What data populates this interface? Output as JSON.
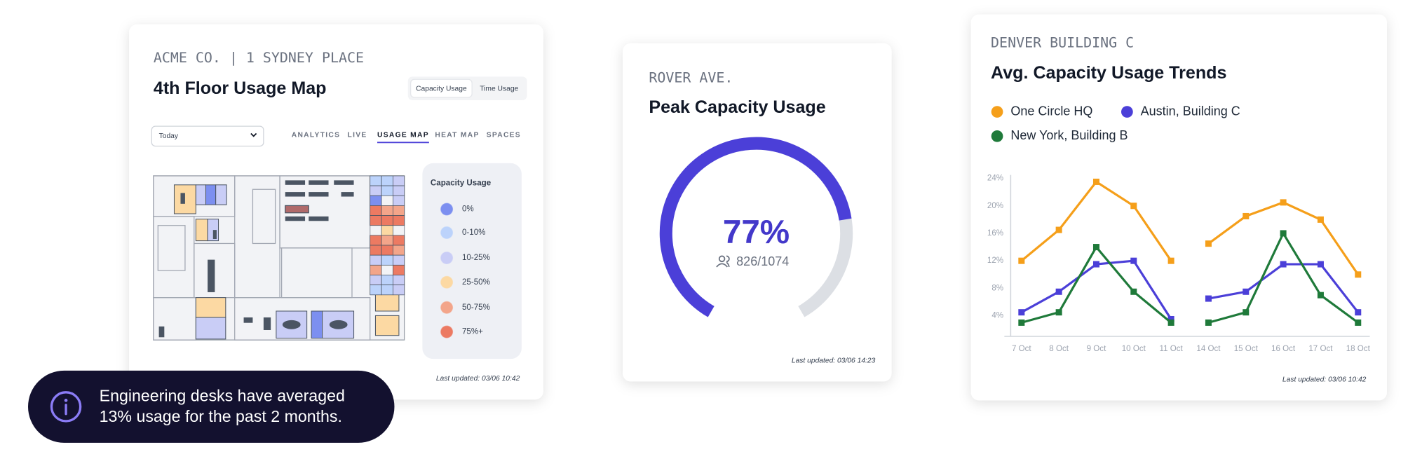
{
  "floor_card": {
    "header": "ACME CO. | 1 SYDNEY PLACE",
    "title": "4th Floor Usage Map",
    "toggle": [
      "Capacity Usage",
      "Time Usage"
    ],
    "active_toggle": 0,
    "dropdown": "Today",
    "tabs": [
      "ANALYTICS",
      "LIVE",
      "USAGE MAP",
      "HEAT MAP",
      "SPACES"
    ],
    "active_tab": 2,
    "legend": {
      "title": "Capacity Usage",
      "items": [
        {
          "label": "0%",
          "color": "#7c8ff0"
        },
        {
          "label": "0-10%",
          "color": "#bcd3fb"
        },
        {
          "label": "10-25%",
          "color": "#c9cdf6"
        },
        {
          "label": "25-50%",
          "color": "#fcd9a3"
        },
        {
          "label": "50-75%",
          "color": "#f3a58a"
        },
        {
          "label": "75%+",
          "color": "#ec7a62"
        }
      ]
    },
    "footer": "Last updated: 03/06 10:42"
  },
  "chart_data": [
    {
      "type": "gauge",
      "header": "ROVER AVE.",
      "title": "Peak Capacity Usage",
      "values": [
        77
      ],
      "value_labels": [
        "77%"
      ],
      "ylim": [
        0,
        100
      ],
      "color": "#4b3fd8",
      "track_color": "#dcdfe4",
      "count_label": "826/1074",
      "footer": "Last updated: 03/06 14:23"
    },
    {
      "type": "line",
      "header": "DENVER BUILDING C",
      "title": "Avg. Capacity Usage Trends",
      "categories": [
        [
          "7 Oct",
          "8 Oct",
          "9 Oct",
          "10 Oct",
          "11 Oct"
        ],
        [
          "14 Oct",
          "15 Oct",
          "16 Oct",
          "17 Oct",
          "18 Oct"
        ]
      ],
      "series": [
        {
          "name": "One Circle HQ",
          "color": "#f59f1a",
          "values": [
            [
              12,
              16.5,
              23.5,
              20,
              12
            ],
            [
              14.5,
              18.5,
              20.5,
              18,
              10
            ]
          ]
        },
        {
          "name": "Austin, Building C",
          "color": "#4b3fd8",
          "values": [
            [
              4.5,
              7.5,
              11.5,
              12,
              3.5
            ],
            [
              6.5,
              7.5,
              11.5,
              11.5,
              4.5
            ]
          ]
        },
        {
          "name": "New York, Building B",
          "color": "#1f7a3a",
          "values": [
            [
              3,
              4.5,
              14,
              7.5,
              3
            ],
            [
              3,
              4.5,
              16,
              7,
              3
            ]
          ]
        }
      ],
      "ylim": [
        1,
        24.5
      ],
      "yticks": [
        {
          "value": 4,
          "label": "4%"
        },
        {
          "value": 8,
          "label": "8%"
        },
        {
          "value": 12,
          "label": "12%"
        },
        {
          "value": 16,
          "label": "16%"
        },
        {
          "value": 20,
          "label": "20%"
        },
        {
          "value": 24,
          "label": "24%"
        }
      ],
      "marker": "square",
      "footer": "Last updated: 03/06 10:42"
    }
  ],
  "toast": {
    "lines": [
      "Engineering desks have averaged",
      "13% usage for the past 2 months."
    ]
  }
}
